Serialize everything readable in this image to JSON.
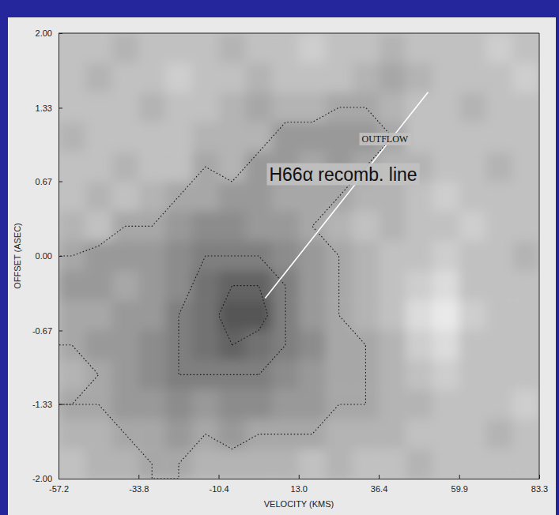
{
  "chart_data": {
    "type": "contour",
    "x_label": "VELOCITY (KMS)",
    "y_label": "OFFSET (ASEC)",
    "xlim": [
      -57.2,
      83.3
    ],
    "ylim": [
      -2,
      2
    ],
    "xticks": [
      -57.2,
      -33.8,
      -10.4,
      {
        "value": 13,
        "label": "13.0"
      },
      36.4,
      59.9,
      83.3
    ],
    "yticks": [
      {
        "value": 2,
        "label": "2.00"
      },
      1.33,
      0.67,
      {
        "value": 0,
        "label": "0.00"
      },
      -0.67,
      -1.33,
      {
        "value": -2,
        "label": "-2.00"
      }
    ],
    "grid": false,
    "line_style": "dotted",
    "zlim": [
      -4,
      9
    ],
    "contour_levels": [
      2,
      5,
      7
    ],
    "cells": [
      [
        0,
        0,
        1,
        0,
        0,
        0,
        1,
        0,
        0,
        -1,
        0,
        0,
        1,
        0,
        0,
        0,
        -1,
        0
      ],
      [
        0,
        1,
        0,
        0,
        -1,
        0,
        0,
        1,
        0,
        0,
        0,
        1,
        2,
        1,
        0,
        0,
        0,
        -1
      ],
      [
        0,
        0,
        0,
        1,
        0,
        0,
        1,
        2,
        1,
        1,
        2,
        2,
        1,
        0,
        0,
        1,
        0,
        0
      ],
      [
        1,
        0,
        0,
        0,
        0,
        1,
        1,
        1,
        3,
        3,
        3,
        3,
        2,
        0,
        0,
        0,
        0,
        0
      ],
      [
        0,
        0,
        1,
        0,
        0,
        2,
        1,
        3,
        3,
        2,
        3,
        2,
        1,
        1,
        0,
        0,
        1,
        0
      ],
      [
        0,
        1,
        0,
        1,
        2,
        2,
        3,
        3,
        2,
        2,
        2,
        1,
        1,
        0,
        -1,
        0,
        0,
        0
      ],
      [
        1,
        0,
        2,
        2,
        3,
        4,
        4,
        3,
        3,
        2,
        1,
        0,
        1,
        0,
        0,
        -1,
        0,
        0
      ],
      [
        2,
        3,
        3,
        3,
        4,
        5,
        5,
        5,
        4,
        3,
        2,
        1,
        0,
        0,
        -1,
        0,
        0,
        1
      ],
      [
        3,
        3,
        2,
        3,
        4,
        6,
        7,
        7,
        5,
        3,
        2,
        1,
        0,
        -1,
        -2,
        0,
        0,
        0
      ],
      [
        2,
        2,
        3,
        3,
        5,
        6,
        8,
        8,
        5,
        3,
        2,
        1,
        0,
        -2,
        -3,
        -1,
        0,
        0
      ],
      [
        2,
        3,
        3,
        4,
        5,
        6,
        7,
        6,
        5,
        4,
        2,
        2,
        1,
        -1,
        -2,
        0,
        0,
        0
      ],
      [
        1,
        2,
        3,
        4,
        5,
        5,
        5,
        5,
        4,
        3,
        2,
        2,
        1,
        0,
        -1,
        0,
        0,
        0
      ],
      [
        2,
        2,
        3,
        3,
        4,
        3,
        4,
        4,
        3,
        3,
        2,
        2,
        1,
        1,
        0,
        0,
        0,
        -1
      ],
      [
        1,
        1,
        2,
        2,
        3,
        2,
        3,
        2,
        2,
        2,
        1,
        1,
        1,
        0,
        0,
        0,
        1,
        0
      ],
      [
        0,
        1,
        1,
        2,
        2,
        1,
        1,
        1,
        1,
        0,
        1,
        0,
        0,
        1,
        0,
        0,
        0,
        0
      ]
    ],
    "line": {
      "x": [
        3.2,
        50.8
      ],
      "y": [
        -0.38,
        1.47
      ],
      "color": "#ffffff"
    },
    "annotations": [
      {
        "text": "OUTFLOW",
        "x": 38.2,
        "y": 1.04
      },
      {
        "text": "H66α recomb. line",
        "x": 26.0,
        "y": 0.72
      }
    ]
  }
}
